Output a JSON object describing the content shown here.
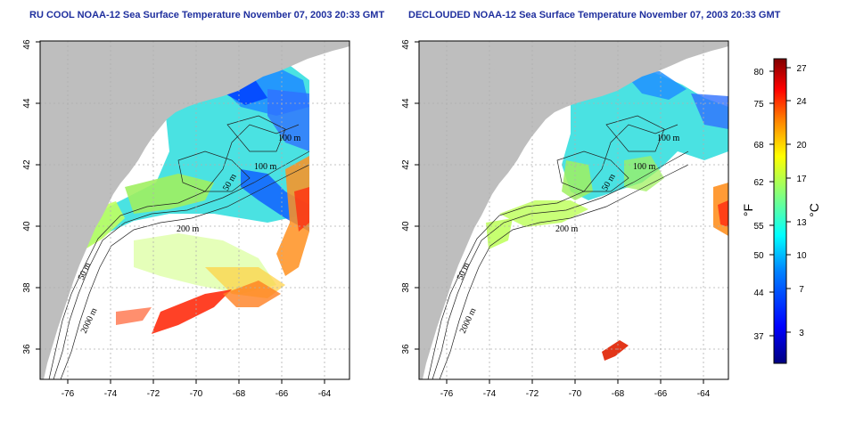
{
  "panels": [
    {
      "id": "left",
      "title": "RU COOL NOAA-12 Sea Surface Temperature November 07, 2003 20:33 GMT",
      "contour_labels": [
        "100 m",
        "100 m",
        "50 m",
        "200 m",
        "50 m",
        "2000 m"
      ]
    },
    {
      "id": "right",
      "title": "DECLOUDED NOAA-12 Sea Surface Temperature November 07, 2003 20:33 GMT",
      "contour_labels": [
        "100 m",
        "100 m",
        "50 m",
        "200 m",
        "50 m",
        "2000 m"
      ]
    }
  ],
  "axes": {
    "lon_ticks": [
      "-76",
      "-74",
      "-72",
      "-70",
      "-68",
      "-66",
      "-64"
    ],
    "lat_ticks": [
      "36",
      "38",
      "40",
      "42",
      "44",
      "46"
    ],
    "lon_range": [
      -77.3,
      -63.0
    ],
    "lat_range": [
      35.0,
      46.0
    ]
  },
  "colorbar": {
    "fahrenheit_label": "°F",
    "celsius_label": "°C",
    "fahrenheit_ticks": [
      "80",
      "75",
      "68",
      "62",
      "55",
      "50",
      "44",
      "37"
    ],
    "celsius_ticks": [
      "27",
      "24",
      "20",
      "17",
      "13",
      "10",
      "7",
      "3"
    ],
    "range_c": [
      0,
      28
    ],
    "colors": [
      "#00007f",
      "#0000ff",
      "#0080ff",
      "#00ffff",
      "#80ff80",
      "#ffff00",
      "#ff8000",
      "#ff0000",
      "#7f0000"
    ]
  },
  "colors": {
    "land": "#bebebe",
    "title": "#1f2f9e",
    "grid": "#b0b0b0"
  }
}
